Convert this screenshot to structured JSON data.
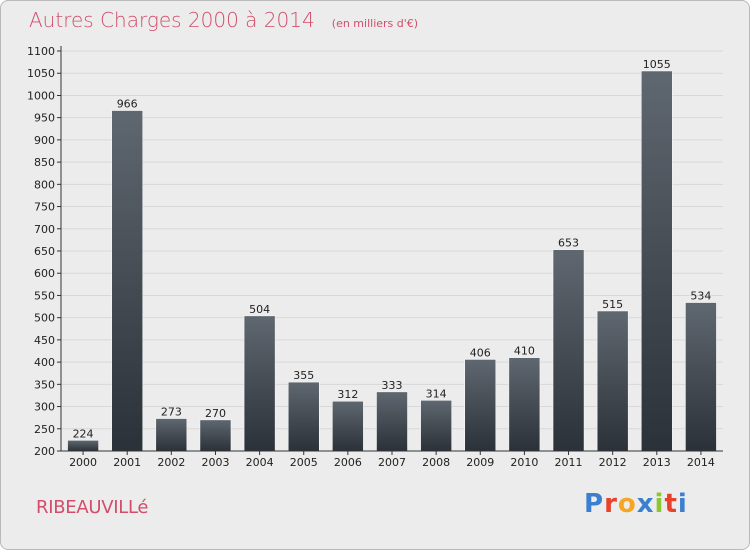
{
  "header": {
    "title": "Autres Charges 2000 à 2014",
    "unit_note": "(en milliers d'€)"
  },
  "footer": {
    "commune": "RIBEAUVILLé",
    "logo_letters": [
      "P",
      "r",
      "o",
      "x",
      "i",
      "t",
      "i"
    ],
    "logo_colors": [
      "#3b7fd1",
      "#e8412c",
      "#f5a623",
      "#3b7fd1",
      "#8ac832",
      "#e8412c",
      "#3b7fd1"
    ]
  },
  "colors": {
    "bar_top": "#5f6770",
    "bar_bottom": "#2b3138",
    "grid": "#d8d8d8",
    "axis": "#333333"
  },
  "chart_data": {
    "type": "bar",
    "title": "Autres Charges 2000 à 2014",
    "subtitle": "(en milliers d'€)",
    "xlabel": "",
    "ylabel": "",
    "categories": [
      "2000",
      "2001",
      "2002",
      "2003",
      "2004",
      "2005",
      "2006",
      "2007",
      "2008",
      "2009",
      "2010",
      "2011",
      "2012",
      "2013",
      "2014"
    ],
    "values": [
      224,
      966,
      273,
      270,
      504,
      355,
      312,
      333,
      314,
      406,
      410,
      653,
      515,
      1055,
      534
    ],
    "ylim": [
      200,
      1100
    ],
    "yticks": [
      200,
      250,
      300,
      350,
      400,
      450,
      500,
      550,
      600,
      650,
      700,
      750,
      800,
      850,
      900,
      950,
      1000,
      1050,
      1100
    ],
    "grid": true,
    "legend": "none"
  }
}
